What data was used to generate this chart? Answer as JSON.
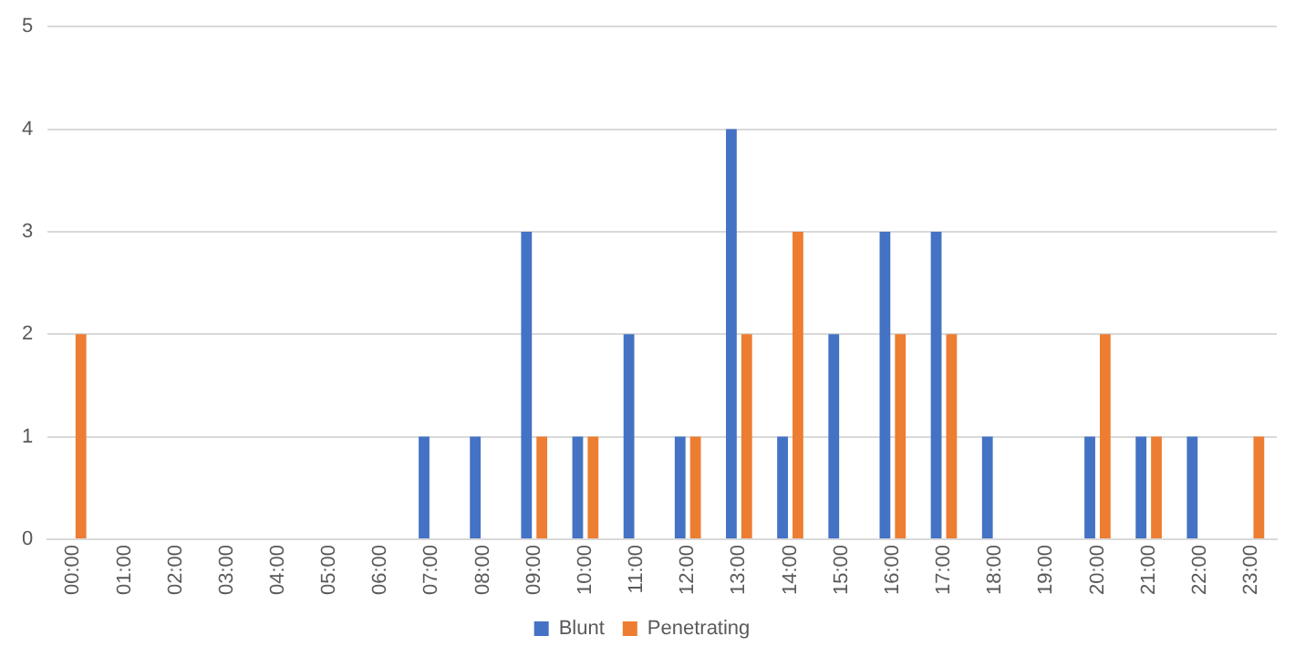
{
  "chart_data": {
    "type": "bar",
    "categories": [
      "00:00",
      "01:00",
      "02:00",
      "03:00",
      "04:00",
      "05:00",
      "06:00",
      "07:00",
      "08:00",
      "09:00",
      "10:00",
      "11:00",
      "12:00",
      "13:00",
      "14:00",
      "15:00",
      "16:00",
      "17:00",
      "18:00",
      "19:00",
      "20:00",
      "21:00",
      "22:00",
      "23:00"
    ],
    "series": [
      {
        "name": "Blunt",
        "color": "#4472c4",
        "values": [
          0,
          0,
          0,
          0,
          0,
          0,
          0,
          1,
          1,
          3,
          1,
          2,
          1,
          4,
          1,
          2,
          3,
          3,
          1,
          0,
          1,
          1,
          1,
          0
        ]
      },
      {
        "name": "Penetrating",
        "color": "#ed7d31",
        "values": [
          2,
          0,
          0,
          0,
          0,
          0,
          0,
          0,
          0,
          1,
          1,
          0,
          1,
          2,
          3,
          0,
          2,
          2,
          0,
          0,
          2,
          1,
          0,
          1
        ]
      }
    ],
    "ylim": [
      0,
      5
    ],
    "yticks": [
      0,
      1,
      2,
      3,
      4,
      5
    ],
    "grid": "y",
    "legend": "bottom"
  }
}
